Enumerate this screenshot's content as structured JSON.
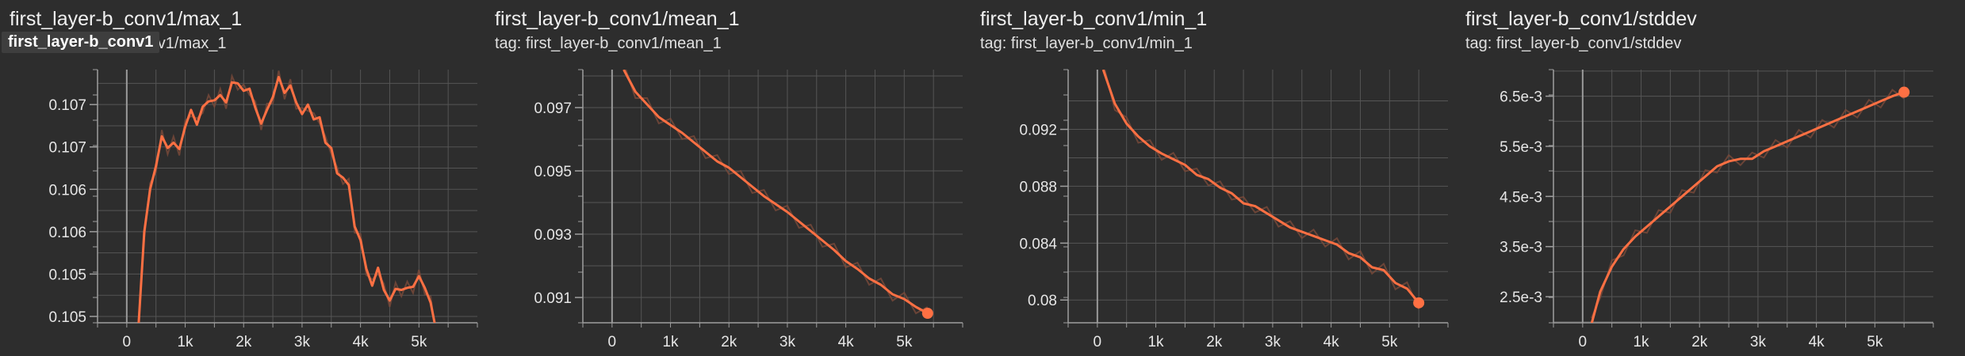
{
  "panels": [
    {
      "title": "first_layer-b_conv1/max_1",
      "subtitle": "tag: first_layer-b_conv1/max_1",
      "tooltip": "first_layer-b_conv1"
    },
    {
      "title": "first_layer-b_conv1/mean_1",
      "subtitle": "tag: first_layer-b_conv1/mean_1"
    },
    {
      "title": "first_layer-b_conv1/min_1",
      "subtitle": "tag: first_layer-b_conv1/min_1"
    },
    {
      "title": "first_layer-b_conv1/stddev",
      "subtitle": "tag: first_layer-b_conv1/stddev"
    }
  ],
  "colors": {
    "background": "#2d2d2d",
    "line": "#ff7043",
    "raw_line": "#7a4a3a",
    "grid": "#555555",
    "axis": "#9e9e9e",
    "zero_line": "#9a9a9a",
    "text": "#e6e6e6"
  },
  "chart_data": [
    {
      "type": "line",
      "title": "first_layer-b_conv1/max_1",
      "xlim": [
        -500,
        6000
      ],
      "ylim": [
        0.10479,
        0.10718
      ],
      "x_ticks": [
        0,
        1000,
        2000,
        3000,
        4000,
        5000
      ],
      "x_tick_labels": [
        "0",
        "1k",
        "2k",
        "3k",
        "4k",
        "5k"
      ],
      "y_ticks": [
        0.10485,
        0.10525,
        0.10565,
        0.10605,
        0.10645,
        0.10685
      ],
      "y_tick_labels": [
        "0.105",
        "0.105",
        "0.106",
        "0.106",
        "0.107",
        "0.107"
      ],
      "end_marker": false,
      "series": [
        {
          "x": [
            200,
            300,
            400,
            500,
            600,
            700,
            800,
            900,
            1000,
            1100,
            1200,
            1300,
            1400,
            1500,
            1600,
            1700,
            1800,
            1900,
            2000,
            2100,
            2200,
            2300,
            2400,
            2500,
            2600,
            2700,
            2800,
            2900,
            3000,
            3100,
            3200,
            3300,
            3400,
            3500,
            3600,
            3700,
            3800,
            3900,
            4000,
            4100,
            4200,
            4300,
            4400,
            4500,
            4600,
            4700,
            4800,
            4900,
            5000,
            5100,
            5200,
            5300
          ],
          "y": [
            0.10475,
            0.10565,
            0.10605,
            0.10627,
            0.10655,
            0.10644,
            0.10649,
            0.10643,
            0.10664,
            0.1068,
            0.10666,
            0.10683,
            0.10688,
            0.10689,
            0.10694,
            0.10687,
            0.10706,
            0.10705,
            0.10698,
            0.107,
            0.10682,
            0.10667,
            0.1068,
            0.10692,
            0.10711,
            0.10696,
            0.10703,
            0.10687,
            0.10676,
            0.10685,
            0.10671,
            0.10673,
            0.10649,
            0.10644,
            0.1062,
            0.10616,
            0.10609,
            0.1057,
            0.10557,
            0.1053,
            0.10514,
            0.10531,
            0.1051,
            0.105,
            0.10511,
            0.1051,
            0.10512,
            0.10513,
            0.10523,
            0.10512,
            0.10498,
            0.1047
          ]
        }
      ]
    },
    {
      "type": "line",
      "title": "first_layer-b_conv1/mean_1",
      "xlim": [
        -500,
        6000
      ],
      "ylim": [
        0.0902,
        0.0982
      ],
      "x_ticks": [
        0,
        1000,
        2000,
        3000,
        4000,
        5000
      ],
      "x_tick_labels": [
        "0",
        "1k",
        "2k",
        "3k",
        "4k",
        "5k"
      ],
      "y_ticks": [
        0.091,
        0.093,
        0.095,
        0.097
      ],
      "y_tick_labels": [
        "0.091",
        "0.093",
        "0.095",
        "0.097"
      ],
      "end_marker": true,
      "series": [
        {
          "x": [
            200,
            400,
            600,
            800,
            1000,
            1200,
            1400,
            1600,
            1800,
            2000,
            2200,
            2400,
            2600,
            2800,
            3000,
            3200,
            3400,
            3600,
            3800,
            4000,
            4200,
            4400,
            4600,
            4800,
            5000,
            5200,
            5400
          ],
          "y": [
            0.0982,
            0.0975,
            0.0971,
            0.0967,
            0.09645,
            0.0962,
            0.0959,
            0.0956,
            0.0953,
            0.0951,
            0.0948,
            0.0945,
            0.0942,
            0.09395,
            0.0937,
            0.0934,
            0.0931,
            0.0928,
            0.0925,
            0.09215,
            0.0919,
            0.0916,
            0.0914,
            0.0911,
            0.09095,
            0.0907,
            0.0905
          ]
        }
      ]
    },
    {
      "type": "line",
      "title": "first_layer-b_conv1/min_1",
      "xlim": [
        -500,
        6000
      ],
      "ylim": [
        0.0784,
        0.0962
      ],
      "x_ticks": [
        0,
        1000,
        2000,
        3000,
        4000,
        5000
      ],
      "x_tick_labels": [
        "0",
        "1k",
        "2k",
        "3k",
        "4k",
        "5k"
      ],
      "y_ticks": [
        0.08,
        0.084,
        0.088,
        0.092
      ],
      "y_tick_labels": [
        "0.08",
        "0.084",
        "0.088",
        "0.092"
      ],
      "end_marker": true,
      "series": [
        {
          "x": [
            100,
            300,
            500,
            700,
            900,
            1100,
            1300,
            1500,
            1700,
            1900,
            2100,
            2300,
            2500,
            2700,
            2900,
            3100,
            3300,
            3500,
            3700,
            3900,
            4100,
            4300,
            4500,
            4700,
            4900,
            5100,
            5300,
            5500
          ],
          "y": [
            0.0962,
            0.0938,
            0.0924,
            0.0915,
            0.0908,
            0.0903,
            0.0899,
            0.0895,
            0.0888,
            0.0885,
            0.0879,
            0.0875,
            0.0868,
            0.0866,
            0.0861,
            0.0856,
            0.0851,
            0.0848,
            0.0845,
            0.0842,
            0.0839,
            0.0833,
            0.083,
            0.0823,
            0.0821,
            0.0812,
            0.0808,
            0.0798
          ]
        }
      ]
    },
    {
      "type": "line",
      "title": "first_layer-b_conv1/stddev",
      "xlim": [
        -500,
        6000
      ],
      "ylim": [
        0.00198,
        0.00703
      ],
      "x_ticks": [
        0,
        1000,
        2000,
        3000,
        4000,
        5000
      ],
      "x_tick_labels": [
        "0",
        "1k",
        "2k",
        "3k",
        "4k",
        "5k"
      ],
      "y_ticks": [
        0.0025,
        0.0035,
        0.0045,
        0.0055,
        0.0065
      ],
      "y_tick_labels": [
        "2.5e-3",
        "3.5e-3",
        "4.5e-3",
        "5.5e-3",
        "6.5e-3"
      ],
      "end_marker": true,
      "series": [
        {
          "x": [
            150,
            300,
            500,
            700,
            900,
            1100,
            1300,
            1500,
            1700,
            1900,
            2100,
            2300,
            2500,
            2700,
            2900,
            3100,
            3300,
            3500,
            3700,
            3900,
            4100,
            4300,
            4500,
            4700,
            4900,
            5100,
            5300,
            5500
          ],
          "y": [
            0.00195,
            0.0026,
            0.0031,
            0.00345,
            0.0037,
            0.0039,
            0.0041,
            0.0043,
            0.0045,
            0.0047,
            0.0049,
            0.0051,
            0.0052,
            0.00525,
            0.00525,
            0.0054,
            0.0055,
            0.0056,
            0.0057,
            0.0058,
            0.0059,
            0.006,
            0.0061,
            0.0062,
            0.0063,
            0.0064,
            0.0065,
            0.00658
          ]
        }
      ]
    }
  ]
}
